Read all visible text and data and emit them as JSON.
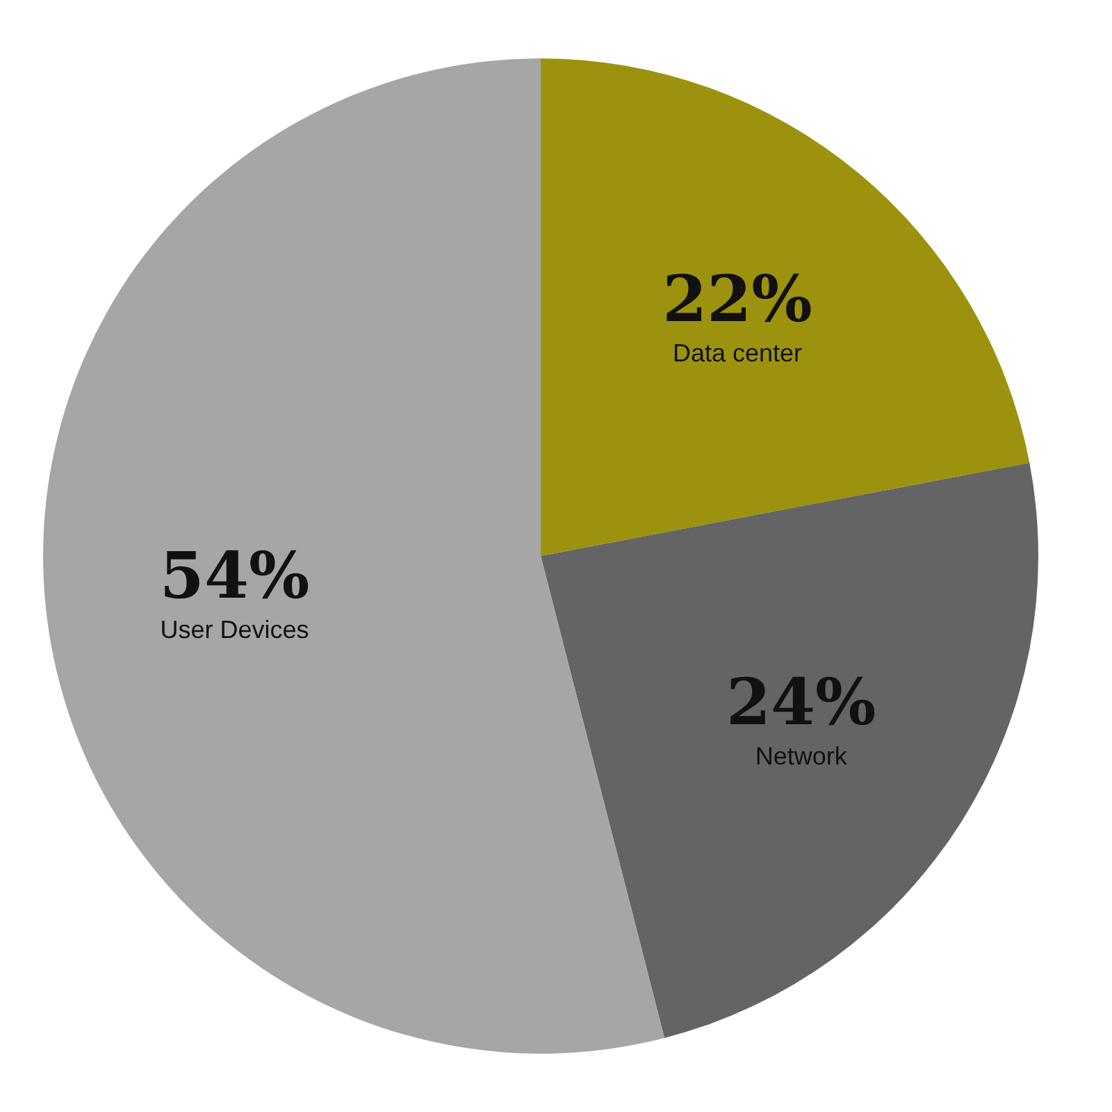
{
  "chart_data": {
    "type": "pie",
    "categories": [
      "Data center",
      "Network",
      "User Devices"
    ],
    "values": [
      22,
      24,
      54
    ],
    "colors": [
      "#9c920e",
      "#636463",
      "#a6a6a6"
    ],
    "value_labels": [
      "22%",
      "24%",
      "54%"
    ],
    "legend": false
  }
}
